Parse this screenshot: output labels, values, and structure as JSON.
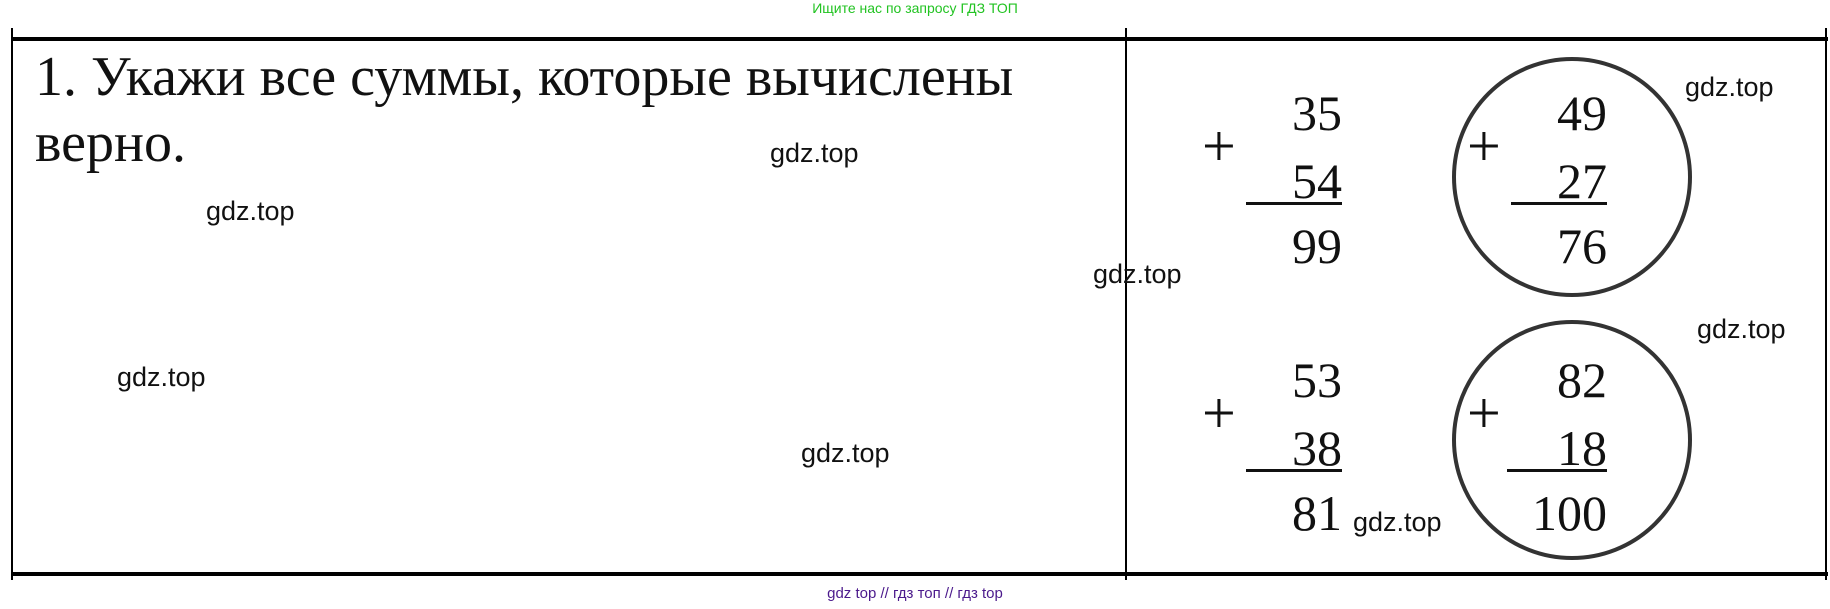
{
  "header_note": "Ищите нас по запросу ГДЗ ТОП",
  "task": {
    "line1": "1. Укажи все суммы, которые вычислены",
    "line2": "верно."
  },
  "watermark": "gdz.top",
  "sums": [
    {
      "a": "35",
      "b": "54",
      "result": "99",
      "circled": false
    },
    {
      "a": "49",
      "b": "27",
      "result": "76",
      "circled": true
    },
    {
      "a": "53",
      "b": "38",
      "result": "81",
      "circled": false
    },
    {
      "a": "82",
      "b": "18",
      "result": "100",
      "circled": true
    }
  ],
  "plus_sign": "+",
  "footer": "gdz top  //  гдз топ  //  гдз top"
}
